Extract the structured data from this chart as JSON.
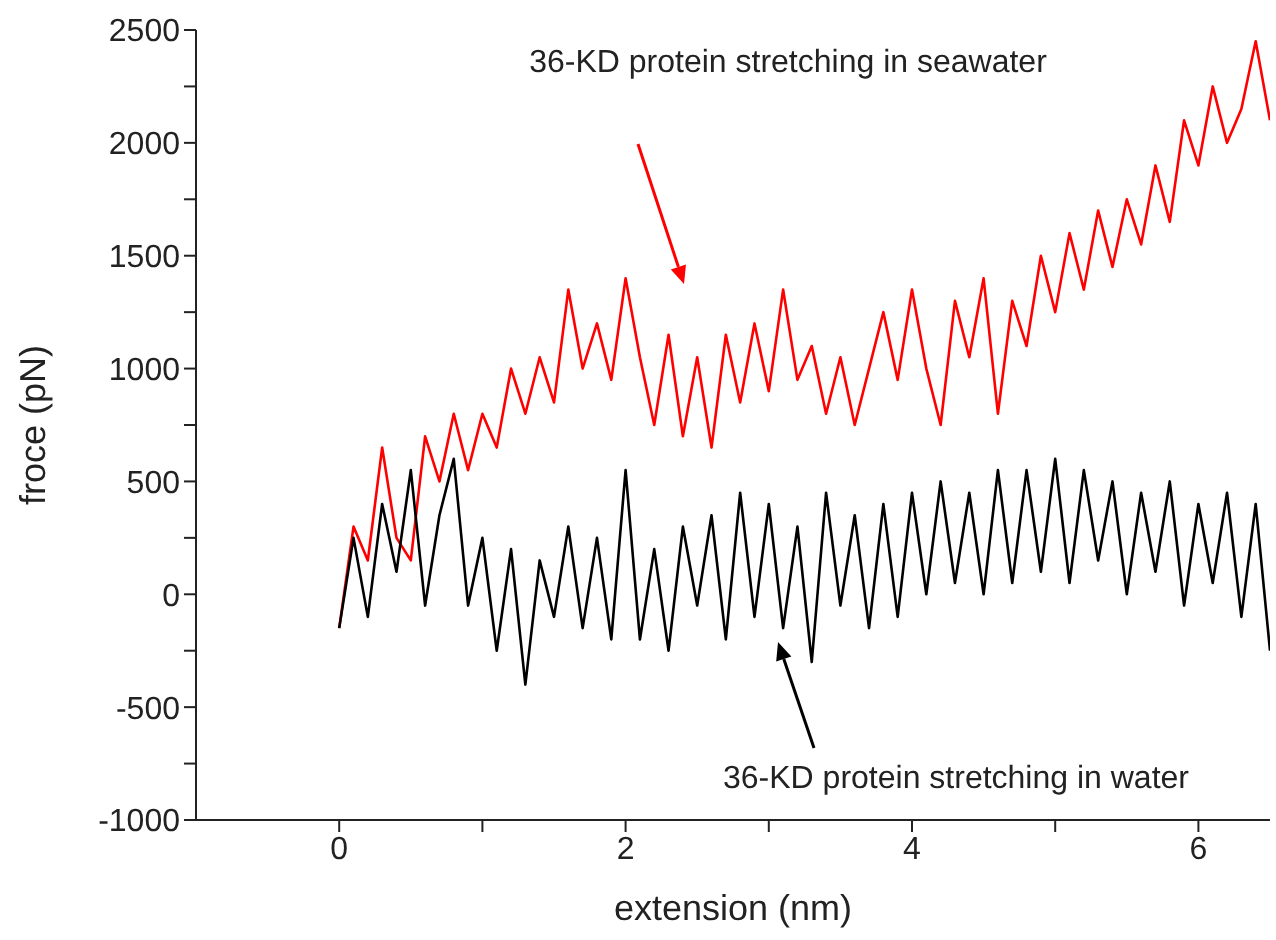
{
  "chart_data": {
    "type": "line",
    "xlabel": "extension (nm)",
    "ylabel": "froce (pN)",
    "x": [
      0.0,
      0.1,
      0.2,
      0.3,
      0.4,
      0.5,
      0.6,
      0.7,
      0.8,
      0.9,
      1.0,
      1.1,
      1.2,
      1.3,
      1.4,
      1.5,
      1.6,
      1.7,
      1.8,
      1.9,
      2.0,
      2.1,
      2.2,
      2.3,
      2.4,
      2.5,
      2.6,
      2.7,
      2.8,
      2.9,
      3.0,
      3.1,
      3.2,
      3.3,
      3.4,
      3.5,
      3.6,
      3.7,
      3.8,
      3.9,
      4.0,
      4.1,
      4.2,
      4.3,
      4.4,
      4.5,
      4.6,
      4.7,
      4.8,
      4.9,
      5.0,
      5.1,
      5.2,
      5.3,
      5.4,
      5.5,
      5.6,
      5.7,
      5.8,
      5.9,
      6.0,
      6.1,
      6.2,
      6.3,
      6.4,
      6.5
    ],
    "series": [
      {
        "color": "#ff0000",
        "values": [
          -150,
          300,
          150,
          650,
          250,
          150,
          700,
          500,
          800,
          550,
          800,
          650,
          1000,
          800,
          1050,
          850,
          1350,
          1000,
          1200,
          950,
          1400,
          1050,
          750,
          1150,
          700,
          1050,
          650,
          1150,
          850,
          1200,
          900,
          1350,
          950,
          1100,
          800,
          1050,
          750,
          1000,
          1250,
          950,
          1350,
          1000,
          750,
          1300,
          1050,
          1400,
          800,
          1300,
          1100,
          1500,
          1250,
          1600,
          1350,
          1700,
          1450,
          1750,
          1550,
          1900,
          1650,
          2100,
          1900,
          2250,
          2000,
          2150,
          2450,
          2100
        ]
      },
      {
        "color": "#000000",
        "values": [
          -150,
          250,
          -100,
          400,
          100,
          550,
          -50,
          350,
          600,
          -50,
          250,
          -250,
          200,
          -400,
          150,
          -100,
          300,
          -150,
          250,
          -200,
          550,
          -200,
          200,
          -250,
          300,
          -50,
          350,
          -200,
          450,
          -100,
          400,
          -150,
          300,
          -300,
          450,
          -50,
          350,
          -150,
          400,
          -100,
          450,
          0,
          500,
          50,
          450,
          0,
          550,
          50,
          550,
          100,
          600,
          50,
          550,
          150,
          500,
          0,
          450,
          100,
          500,
          -50,
          400,
          50,
          450,
          -100,
          400,
          -250
        ]
      }
    ],
    "annotations": [
      "36-KD protein stretching in seawater",
      "36-KD protein stretching in water"
    ],
    "xlim": [
      -1,
      6.5
    ],
    "xticks": [
      0,
      {
        "value": 1,
        "label": null
      },
      2,
      {
        "value": 3,
        "label": null
      },
      4,
      {
        "value": 5,
        "label": null
      },
      6
    ],
    "ylim": [
      -1000,
      2500
    ],
    "yticks": [
      -1000,
      {
        "value": -750,
        "label": null
      },
      -500,
      {
        "value": -250,
        "label": null
      },
      0,
      {
        "value": 250,
        "label": null
      },
      500,
      {
        "value": 750,
        "label": null
      },
      1000,
      {
        "value": 1250,
        "label": null
      },
      1500,
      {
        "value": 1750,
        "label": null
      },
      2000,
      {
        "value": 2250,
        "label": null
      },
      2500
    ],
    "grid": false,
    "legend": false,
    "marker": "none",
    "line_style": "solid"
  }
}
